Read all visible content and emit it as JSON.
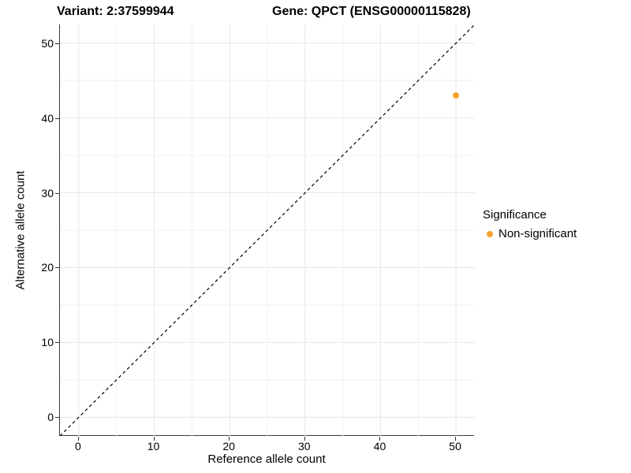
{
  "chart_data": {
    "type": "scatter",
    "title_variant": "Variant: 2:37599944",
    "title_gene": "Gene: QPCT (ENSG00000115828)",
    "xlabel": "Reference allele count",
    "ylabel": "Alternative allele count",
    "xlim": [
      -2.5,
      52.5
    ],
    "ylim": [
      -2.5,
      52.5
    ],
    "xticks": [
      0,
      10,
      20,
      30,
      40,
      50
    ],
    "yticks": [
      0,
      10,
      20,
      30,
      40,
      50
    ],
    "grid": true,
    "gridline_values": [
      0,
      5,
      10,
      15,
      20,
      25,
      30,
      35,
      40,
      45,
      50
    ],
    "points": [
      {
        "x": 50,
        "y": 43,
        "series": "Non-significant"
      }
    ],
    "identity_line": {
      "style": "dashed",
      "from": [
        -2.5,
        -2.5
      ],
      "to": [
        52.5,
        52.5
      ]
    },
    "legend": {
      "title": "Significance",
      "position": "right",
      "items": [
        {
          "label": "Non-significant",
          "color": "#F9A22B",
          "marker": "dot-icon"
        }
      ]
    },
    "colors": {
      "point": "#F9A22B",
      "grid_major": "#E7E7E7",
      "grid_minor": "#F0F0F0",
      "axis_line": "#3C3C3C",
      "tick": "#333333",
      "identity_line": "#000000",
      "background": "#FFFFFF"
    }
  }
}
